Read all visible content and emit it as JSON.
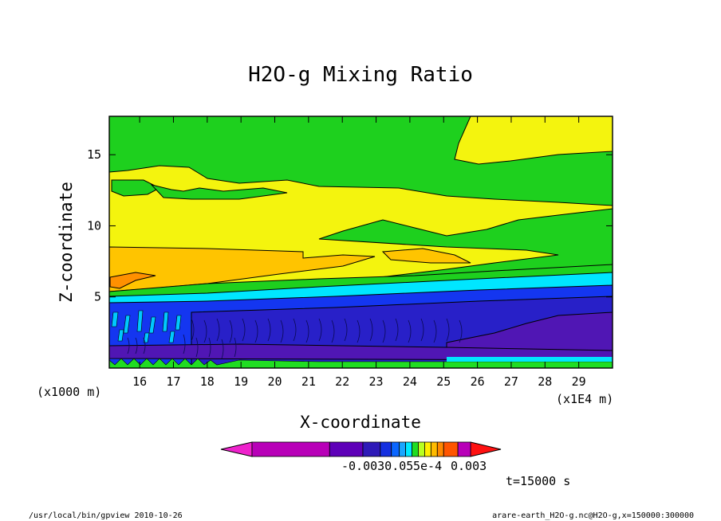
{
  "chart_data": {
    "type": "heatmap",
    "title": "H2O-g Mixing Ratio",
    "xlabel": "X-coordinate",
    "ylabel": "Z-coordinate",
    "x_unit": "(x1E4 m)",
    "y_unit": "(x1000 m)",
    "xlim": [
      15.1,
      30
    ],
    "ylim": [
      0,
      17.7
    ],
    "x_ticks": [
      16,
      17,
      18,
      19,
      20,
      21,
      22,
      23,
      24,
      25,
      26,
      27,
      28,
      29
    ],
    "y_ticks": [
      5,
      10,
      15
    ],
    "colorbar_labels": [
      "-0.0030.05",
      "5e-4",
      "0.003"
    ],
    "colorbar_colors": [
      "#ee22cc",
      "#b800b8",
      "#b800b8",
      "#7a00b8",
      "#5e00b8",
      "#2e1ab8",
      "#1530e0",
      "#0a66ff",
      "#19a6ff",
      "#00e8ff",
      "#20dd22",
      "#b8ff20",
      "#ffee00",
      "#ffbb00",
      "#ff8800",
      "#ff5500",
      "#ff1111"
    ],
    "time_label": "t=15000 s",
    "regions": [
      {
        "name": "green-top",
        "color": "#1ed01e"
      },
      {
        "name": "yellow-upper",
        "color": "#f4f40e"
      },
      {
        "name": "orange-mid",
        "color": "#ffc400"
      },
      {
        "name": "cyan-band",
        "color": "#00e6ff"
      },
      {
        "name": "blue-low",
        "color": "#1436f0"
      },
      {
        "name": "purple-surface",
        "color": "#5016b4"
      }
    ]
  },
  "footer": {
    "left": "/usr/local/bin/gpview  2010-10-26",
    "right": "arare-earth_H2O-g.nc@H2O-g,x=150000:300000"
  }
}
